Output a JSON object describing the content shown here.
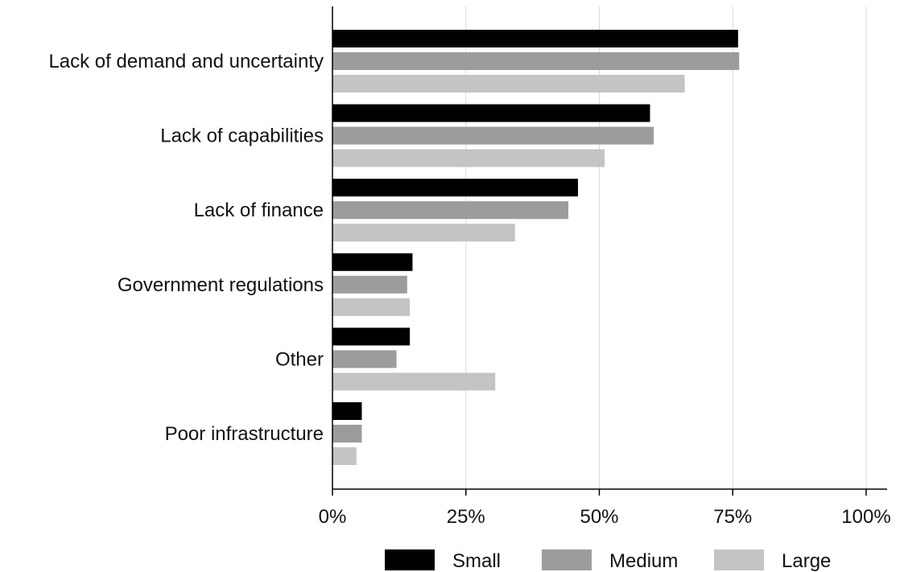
{
  "chart_data": {
    "type": "bar",
    "orientation": "horizontal",
    "categories": [
      "Lack of demand and uncertainty",
      "Lack of capabilities",
      "Lack of finance",
      "Government regulations",
      "Other",
      "Poor infrastructure"
    ],
    "series": [
      {
        "name": "Small",
        "color": "#000000",
        "values": [
          76,
          59.5,
          46,
          15,
          14.5,
          5.5
        ]
      },
      {
        "name": "Medium",
        "color": "#9c9c9c",
        "values": [
          76.2,
          60.2,
          44.2,
          14,
          12,
          5.5
        ]
      },
      {
        "name": "Large",
        "color": "#c4c4c4",
        "values": [
          66,
          51,
          34.2,
          14.5,
          30.5,
          4.5
        ]
      }
    ],
    "xlim": [
      0,
      100
    ],
    "xticks": [
      0,
      25,
      50,
      75,
      100
    ],
    "xtick_labels": [
      "0%",
      "25%",
      "50%",
      "75%",
      "100%"
    ],
    "grid": "vertical",
    "legend_position": "bottom",
    "title": "",
    "xlabel": "",
    "ylabel": ""
  }
}
